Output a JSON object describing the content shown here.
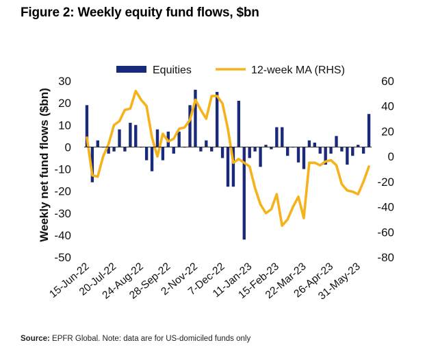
{
  "title": "Figure 2: Weekly equity fund flows, $bn",
  "footer": {
    "source_label": "Source:",
    "source_text": "EPFR Global. Note: data are for US-domiciled funds only"
  },
  "colors": {
    "bars": "#1a2a7a",
    "line": "#f5b21b",
    "axis": "#222222"
  },
  "chart_data": {
    "type": "bar+line",
    "title": "Figure 2: Weekly equity fund flows, $bn",
    "ylabel": "Weekly net fund flows ($bn)",
    "ylim": [
      -50,
      30
    ],
    "y_ticks": [
      30,
      20,
      10,
      0,
      -10,
      -20,
      -30,
      -40,
      -50
    ],
    "y2lim": [
      -80,
      60
    ],
    "y2_ticks": [
      60,
      40,
      20,
      0,
      -20,
      -40,
      -60,
      -80
    ],
    "x_tick_labels": [
      "15-Jun-22",
      "20-Jul-22",
      "24-Aug-22",
      "28-Sep-22",
      "2-Nov-22",
      "7-Dec-22",
      "11-Jan-23",
      "15-Feb-23",
      "22-Mar-23",
      "26-Apr-23",
      "31-May-23"
    ],
    "x_tick_indices": [
      0,
      5,
      10,
      15,
      20,
      25,
      30,
      35,
      40,
      45,
      50
    ],
    "legend": {
      "position": "top",
      "entries": [
        "Equities",
        "12-week MA (RHS)"
      ]
    },
    "series": [
      {
        "name": "Equities",
        "axis": "left",
        "type": "bar",
        "values": [
          19,
          -16,
          3,
          0,
          -3,
          -2,
          8,
          -2,
          11,
          10,
          0,
          -6,
          -11,
          8,
          -6,
          7,
          -3,
          7,
          0,
          19,
          26,
          -2,
          3,
          -2,
          25,
          -5,
          -18,
          -18,
          21,
          -42,
          -5,
          -2,
          -9,
          1,
          -1,
          9,
          9,
          -4,
          0,
          -7,
          -10,
          3,
          2,
          -3,
          -8,
          -3,
          5,
          -2,
          -8,
          -4,
          1,
          -3,
          15
        ]
      },
      {
        "name": "12-week MA (RHS)",
        "axis": "right",
        "type": "line",
        "values": [
          15,
          -15,
          -16,
          0,
          10,
          25,
          28,
          37,
          38,
          52,
          45,
          40,
          15,
          0,
          18,
          12,
          14,
          22,
          23,
          29,
          45,
          37,
          30,
          48,
          48,
          42,
          22,
          -5,
          -2,
          -5,
          -8,
          -25,
          -38,
          -45,
          -42,
          -30,
          -55,
          -50,
          -40,
          -32,
          -49,
          -5,
          -5,
          -7,
          -4,
          -3,
          -7,
          -22,
          -27,
          -28,
          -30,
          -20,
          -8
        ]
      }
    ],
    "n_weeks": 53
  }
}
